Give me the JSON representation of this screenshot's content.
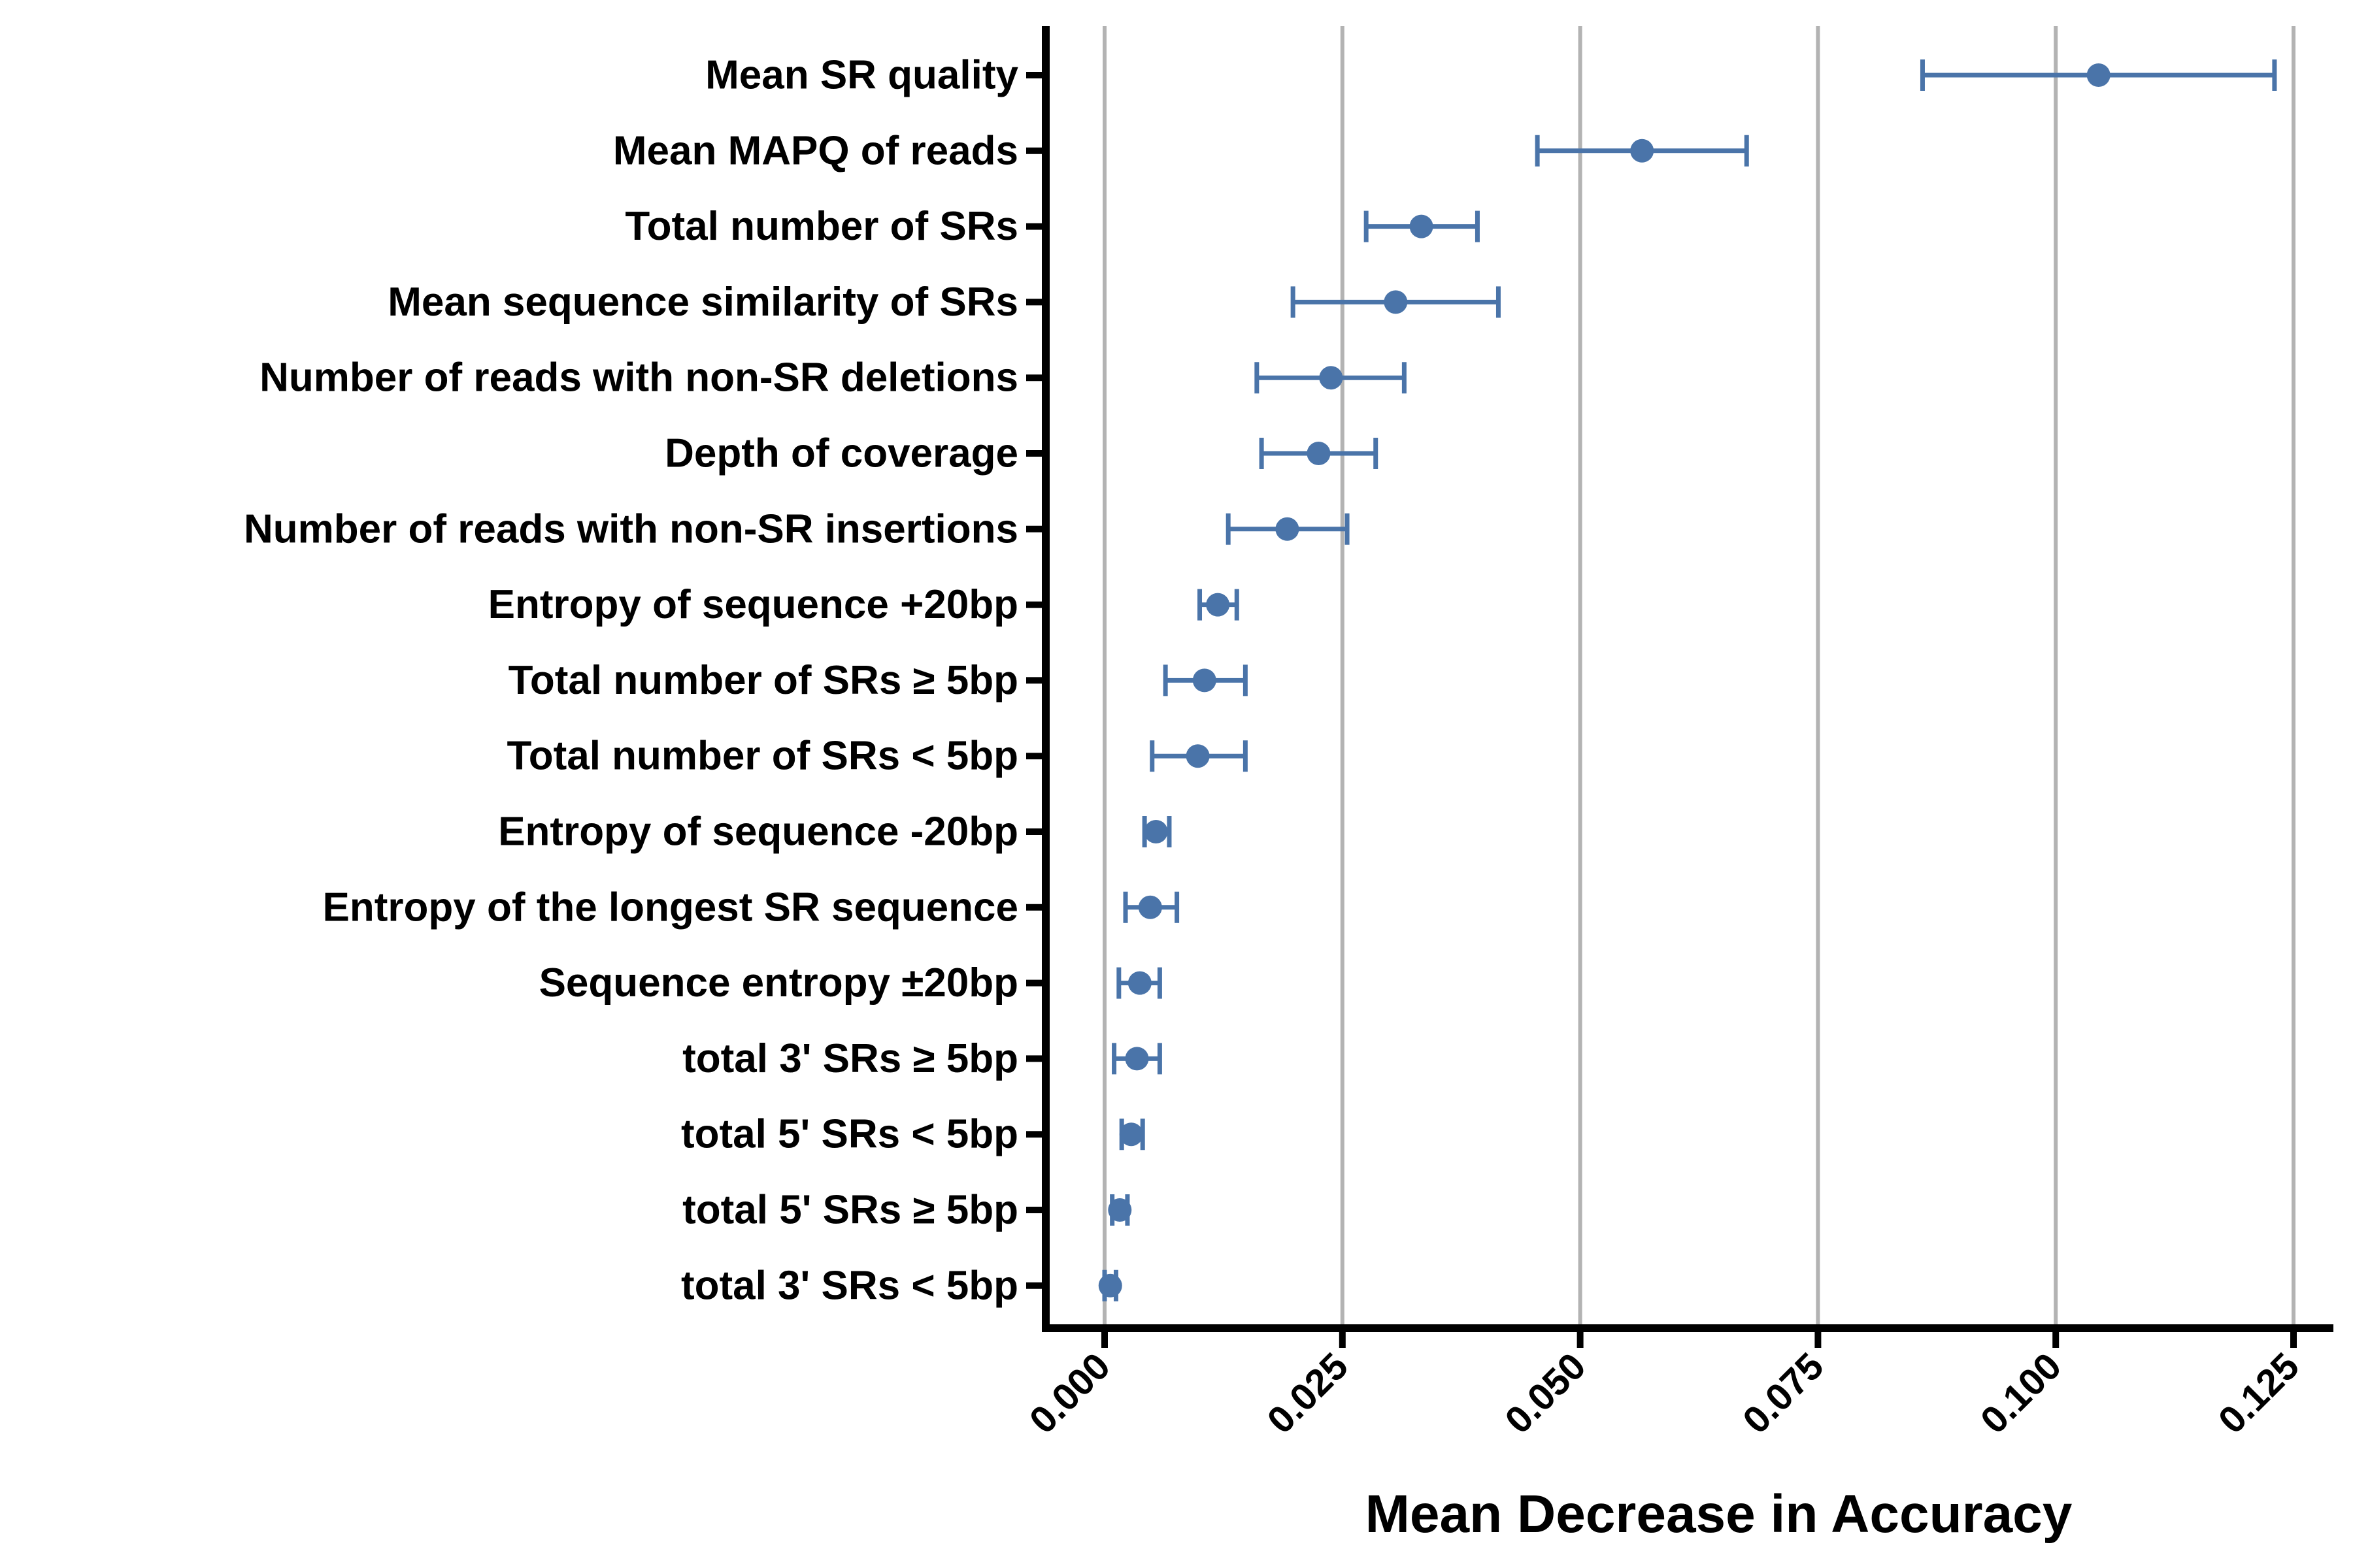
{
  "chart_data": {
    "type": "scatter",
    "subtype": "dot-with-error-bars",
    "xlabel": "Mean Decrease in Accuracy",
    "ylabel": "",
    "xlim": [
      -0.006,
      0.1285
    ],
    "xticks": [
      "0.000",
      "0.025",
      "0.050",
      "0.075",
      "0.100",
      "0.125"
    ],
    "xtick_values": [
      0,
      0.025,
      0.05,
      0.075,
      0.1,
      0.125
    ],
    "grid": "vertical major gridlines",
    "series_color": "#4a74a9",
    "features": [
      {
        "label": "Mean SR quality",
        "value": 0.1045,
        "low": 0.086,
        "high": 0.123
      },
      {
        "label": "Mean MAPQ of reads",
        "value": 0.0565,
        "low": 0.0455,
        "high": 0.0675
      },
      {
        "label": "Total number of SRs",
        "value": 0.0333,
        "low": 0.0275,
        "high": 0.0392
      },
      {
        "label": "Mean sequence similarity of SRs",
        "value": 0.0306,
        "low": 0.0198,
        "high": 0.0414
      },
      {
        "label": "Number of reads with non-SR deletions",
        "value": 0.0238,
        "low": 0.016,
        "high": 0.0315
      },
      {
        "label": "Depth of coverage",
        "value": 0.0225,
        "low": 0.0165,
        "high": 0.0285
      },
      {
        "label": "Number of reads with non-SR insertions",
        "value": 0.0192,
        "low": 0.013,
        "high": 0.0255
      },
      {
        "label": "Entropy of sequence +20bp",
        "value": 0.0119,
        "low": 0.01,
        "high": 0.0139
      },
      {
        "label": "Total number of SRs ≥ 5bp",
        "value": 0.0105,
        "low": 0.0064,
        "high": 0.0148
      },
      {
        "label": "Total number of SRs < 5bp",
        "value": 0.0098,
        "low": 0.005,
        "high": 0.0148
      },
      {
        "label": "Entropy of sequence -20bp",
        "value": 0.0054,
        "low": 0.0042,
        "high": 0.0068
      },
      {
        "label": "Entropy of the longest SR sequence",
        "value": 0.0048,
        "low": 0.0022,
        "high": 0.0076
      },
      {
        "label": "Sequence entropy ±20bp",
        "value": 0.0037,
        "low": 0.0015,
        "high": 0.0058
      },
      {
        "label": "total 3' SRs ≥ 5bp",
        "value": 0.0034,
        "low": 0.001,
        "high": 0.0058
      },
      {
        "label": "total 5' SRs < 5bp",
        "value": 0.0028,
        "low": 0.0018,
        "high": 0.004
      },
      {
        "label": "total 5' SRs ≥ 5bp",
        "value": 0.0016,
        "low": 0.0008,
        "high": 0.0024
      },
      {
        "label": "total 3' SRs < 5bp",
        "value": 0.0006,
        "low": 0.0,
        "high": 0.0012
      }
    ]
  }
}
